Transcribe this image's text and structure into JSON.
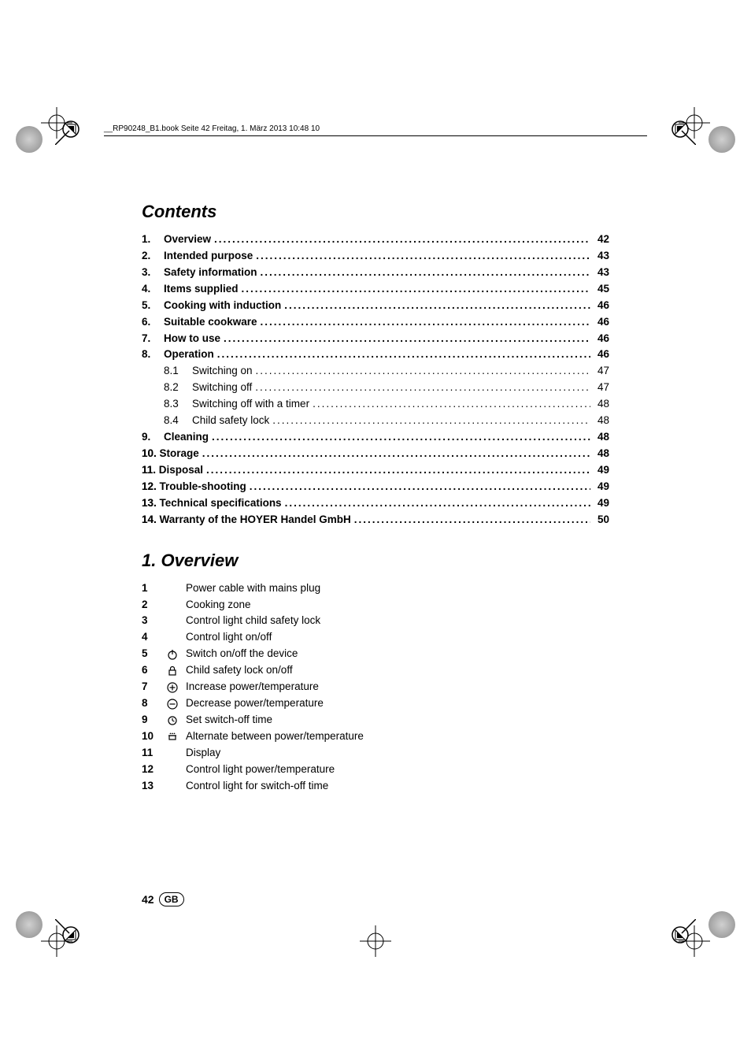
{
  "header": {
    "runner": "__RP90248_B1.book  Seite 42  Freitag, 1. März 2013  10:48 10"
  },
  "contents": {
    "title": "Contents",
    "items": [
      {
        "n": "1.",
        "label": "Overview",
        "page": "42",
        "bold": true
      },
      {
        "n": "2.",
        "label": "Intended purpose",
        "page": "43",
        "bold": true
      },
      {
        "n": "3.",
        "label": "Safety information",
        "page": "43",
        "bold": true
      },
      {
        "n": "4.",
        "label": "Items supplied",
        "page": "45",
        "bold": true
      },
      {
        "n": "5.",
        "label": "Cooking with induction",
        "page": "46",
        "bold": true
      },
      {
        "n": "6.",
        "label": "Suitable cookware",
        "page": "46",
        "bold": true
      },
      {
        "n": "7.",
        "label": "How to use",
        "page": "46",
        "bold": true
      },
      {
        "n": "8.",
        "label": "Operation",
        "page": "46",
        "bold": true
      },
      {
        "n": "",
        "sub": "8.1",
        "label": "Switching on",
        "page": "47",
        "bold": false
      },
      {
        "n": "",
        "sub": "8.2",
        "label": "Switching off",
        "page": "47",
        "bold": false
      },
      {
        "n": "",
        "sub": "8.3",
        "label": "Switching off with a timer",
        "page": "48",
        "bold": false
      },
      {
        "n": "",
        "sub": "8.4",
        "label": "Child safety lock",
        "page": "48",
        "bold": false
      },
      {
        "n": "9.",
        "label": "Cleaning",
        "page": "48",
        "bold": true
      },
      {
        "n": "10.",
        "label": "Storage",
        "page": "48",
        "bold": true,
        "flush": true
      },
      {
        "n": "11.",
        "label": "Disposal",
        "page": "49",
        "bold": true,
        "flush": true
      },
      {
        "n": "12.",
        "label": "Trouble-shooting",
        "page": "49",
        "bold": true,
        "flush": true
      },
      {
        "n": "13.",
        "label": "Technical specifications",
        "page": "49",
        "bold": true,
        "flush": true
      },
      {
        "n": "14.",
        "label": "Warranty of the HOYER Handel GmbH",
        "page": "50",
        "bold": true,
        "flush": true
      }
    ]
  },
  "overview": {
    "title": "1.  Overview",
    "rows": [
      {
        "n": "1",
        "icon": "",
        "desc": "Power cable with mains plug"
      },
      {
        "n": "2",
        "icon": "",
        "desc": "Cooking zone"
      },
      {
        "n": "3",
        "icon": "",
        "desc": "Control light child safety lock"
      },
      {
        "n": "4",
        "icon": "",
        "desc": "Control light on/off"
      },
      {
        "n": "5",
        "icon": "power",
        "desc": "Switch on/off the device"
      },
      {
        "n": "6",
        "icon": "lock",
        "desc": "Child safety lock on/off"
      },
      {
        "n": "7",
        "icon": "plus",
        "desc": "Increase power/temperature"
      },
      {
        "n": "8",
        "icon": "minus",
        "desc": "Decrease power/temperature"
      },
      {
        "n": "9",
        "icon": "timer",
        "desc": "Set switch-off time"
      },
      {
        "n": "10",
        "icon": "pot",
        "desc": "Alternate between power/temperature"
      },
      {
        "n": "11",
        "icon": "",
        "desc": "Display"
      },
      {
        "n": "12",
        "icon": "",
        "desc": "Control light power/temperature"
      },
      {
        "n": "13",
        "icon": "",
        "desc": "Control light for switch-off time"
      }
    ]
  },
  "footer": {
    "page": "42",
    "country": "GB"
  }
}
